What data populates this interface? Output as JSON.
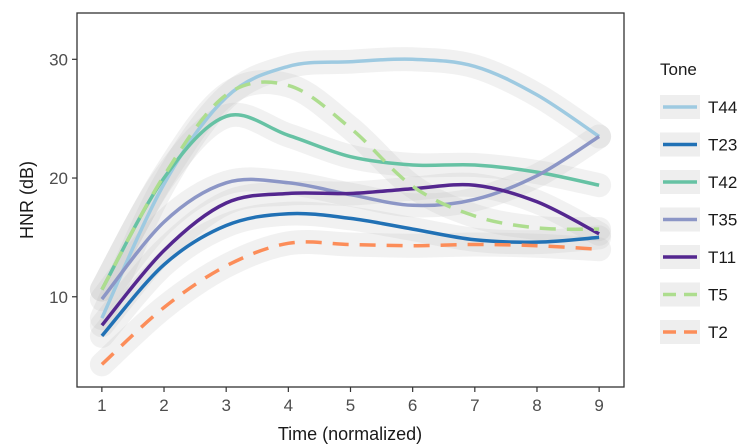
{
  "chart_data": {
    "type": "line",
    "xlabel": "Time (normalized)",
    "ylabel": "HNR (dB)",
    "x": [
      1,
      2,
      3,
      4,
      5,
      6,
      7,
      8,
      9
    ],
    "xticks": [
      "1",
      "2",
      "3",
      "4",
      "5",
      "6",
      "7",
      "8",
      "9"
    ],
    "yticks": [
      "10",
      "20",
      "30"
    ],
    "xlim": [
      0.6,
      9.4
    ],
    "ylim": [
      2.4,
      33.9
    ],
    "grid": false,
    "legend": {
      "title": "Tone",
      "position": "right"
    },
    "series": [
      {
        "name": "T44",
        "color": "#9ecae1",
        "dash": "solid",
        "values": [
          8.2,
          19.5,
          26.8,
          29.4,
          29.8,
          30.0,
          29.4,
          27.0,
          23.5
        ]
      },
      {
        "name": "T23",
        "color": "#2171b5",
        "dash": "solid",
        "values": [
          6.7,
          12.7,
          16.0,
          17.0,
          16.6,
          15.7,
          14.8,
          14.6,
          15.0
        ]
      },
      {
        "name": "T42",
        "color": "#66c2a4",
        "dash": "solid",
        "values": [
          10.6,
          20.0,
          25.2,
          23.6,
          21.8,
          21.1,
          21.1,
          20.5,
          19.4
        ]
      },
      {
        "name": "T35",
        "color": "#8c96c6",
        "dash": "solid",
        "values": [
          9.8,
          16.3,
          19.6,
          19.6,
          18.6,
          17.7,
          18.2,
          20.2,
          23.5
        ]
      },
      {
        "name": "T11",
        "color": "#54278f",
        "dash": "solid",
        "values": [
          7.6,
          13.9,
          17.9,
          18.7,
          18.7,
          19.1,
          19.4,
          18.0,
          15.3
        ]
      },
      {
        "name": "T5",
        "color": "#addd8e",
        "dash": "dashed",
        "values": [
          10.6,
          20.2,
          27.0,
          27.8,
          24.2,
          19.3,
          16.8,
          15.8,
          15.7
        ]
      },
      {
        "name": "T2",
        "color": "#fc8d59",
        "dash": "dashed",
        "values": [
          4.3,
          9.1,
          12.6,
          14.5,
          14.4,
          14.3,
          14.4,
          14.3,
          14.0
        ]
      }
    ]
  }
}
